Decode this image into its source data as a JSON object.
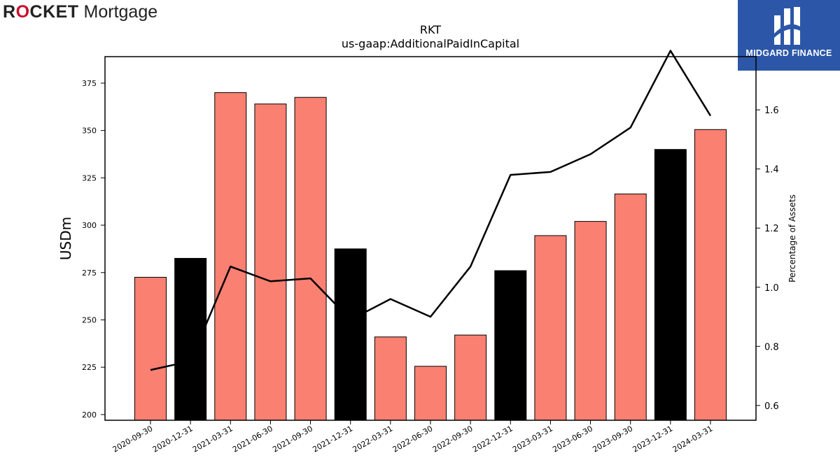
{
  "branding": {
    "left_logo": {
      "first": "R",
      "o": "O",
      "rest": "CKET",
      "second": "Mortgage",
      "accent": "#c8102e"
    },
    "right_logo": {
      "name": "MIDGARD FINANCE",
      "bg": "#2c57a8"
    }
  },
  "chart_data": {
    "type": "bar",
    "title": "RKT",
    "subtitle": "us-gaap:AdditionalPaidInCapital",
    "ylabel": "USDm",
    "y2label": "Percentage of Assets",
    "categories": [
      "2020-09-30",
      "2020-12-31",
      "2021-03-31",
      "2021-06-30",
      "2021-09-30",
      "2021-12-31",
      "2022-03-31",
      "2022-06-30",
      "2022-09-30",
      "2022-12-31",
      "2023-03-31",
      "2023-06-30",
      "2023-09-30",
      "2023-12-31",
      "2024-03-31"
    ],
    "series": [
      {
        "values": [
          272.5,
          282.5,
          370.0,
          364.0,
          367.5,
          287.5,
          241.0,
          225.5,
          242.0,
          276.0,
          294.5,
          302.0,
          316.5,
          340.0,
          350.5
        ],
        "colors": [
          "#fa8072",
          "#000000",
          "#fa8072",
          "#fa8072",
          "#fa8072",
          "#000000",
          "#fa8072",
          "#fa8072",
          "#fa8072",
          "#000000",
          "#fa8072",
          "#fa8072",
          "#fa8072",
          "#000000",
          "#fa8072"
        ],
        "axis": "left"
      },
      {
        "type": "line",
        "values": [
          0.72,
          0.75,
          1.07,
          1.02,
          1.03,
          0.89,
          0.96,
          0.9,
          1.07,
          1.38,
          1.39,
          1.45,
          1.54,
          1.8,
          1.58
        ],
        "color": "#000000",
        "axis": "right"
      }
    ],
    "ylim": [
      197,
      389
    ],
    "yticks": [
      200,
      225,
      250,
      275,
      300,
      325,
      350,
      375
    ],
    "y2lim": [
      0.55,
      1.78
    ],
    "y2ticks": [
      "0.6",
      "0.8",
      "1.0",
      "1.2",
      "1.4",
      "1.6"
    ],
    "grid": false,
    "legend": "none"
  }
}
